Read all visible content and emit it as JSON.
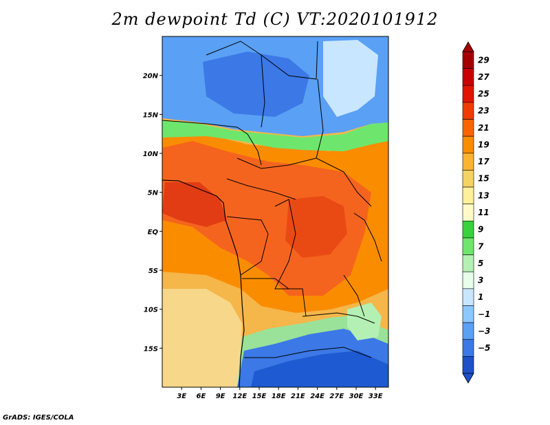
{
  "title": "2m dewpoint Td (C) VT:2020101912",
  "credit": "GrADS: IGES/COLA",
  "map": {
    "lat_labels": [
      "20N",
      "15N",
      "10N",
      "5N",
      "EQ",
      "5S",
      "10S",
      "15S"
    ],
    "lat_values": [
      20,
      15,
      10,
      5,
      0,
      -5,
      -10,
      -15
    ],
    "lon_labels": [
      "3E",
      "6E",
      "9E",
      "12E",
      "15E",
      "18E",
      "21E",
      "24E",
      "27E",
      "30E",
      "33E"
    ],
    "lon_values": [
      3,
      6,
      9,
      12,
      15,
      18,
      21,
      24,
      27,
      30,
      33
    ],
    "lon_range": [
      0,
      35
    ],
    "lat_range": [
      -20,
      25
    ]
  },
  "colorbar": {
    "labels": [
      "29",
      "27",
      "25",
      "23",
      "21",
      "19",
      "17",
      "15",
      "13",
      "11",
      "9",
      "7",
      "5",
      "3",
      "1",
      "−1",
      "−3",
      "−5"
    ],
    "colors": [
      "#a50000",
      "#c80000",
      "#e11400",
      "#f03c00",
      "#fa6400",
      "#fa8c00",
      "#fab432",
      "#f5d264",
      "#fff09b",
      "#fffac8",
      "#37d23c",
      "#6ee66e",
      "#b4f0b4",
      "#e6ffeb",
      "#c8e6ff",
      "#8cc8ff",
      "#5aa0f5",
      "#3c78e6",
      "#1e50c8"
    ]
  }
}
